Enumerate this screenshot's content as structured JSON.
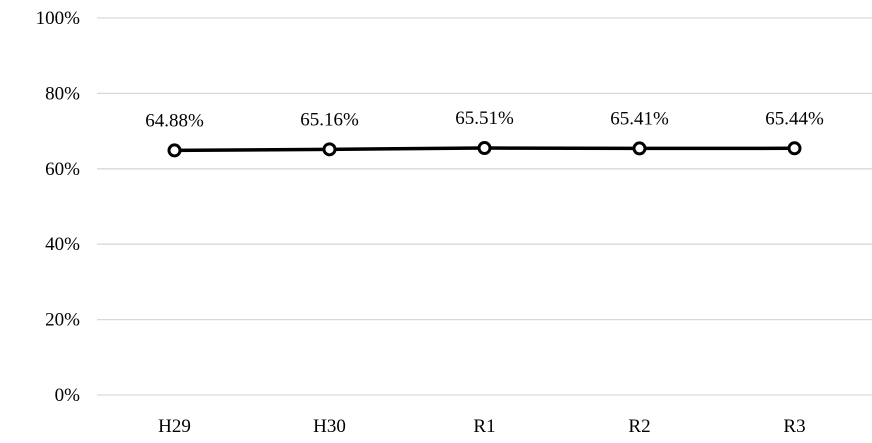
{
  "chart_data": {
    "type": "line",
    "title": "",
    "xlabel": "",
    "ylabel": "",
    "categories": [
      "H29",
      "H30",
      "R1",
      "R2",
      "R3"
    ],
    "series": [
      {
        "values": [
          64.88,
          65.16,
          65.51,
          65.41,
          65.44
        ],
        "data_labels": [
          "64.88%",
          "65.16%",
          "65.51%",
          "65.41%",
          "65.44%"
        ],
        "color": "#000000",
        "marker": "hollow-circle"
      }
    ],
    "ylim": [
      0,
      100
    ],
    "yticks": [
      0,
      20,
      40,
      60,
      80,
      100
    ],
    "ytick_labels": [
      "0%",
      "20%",
      "40%",
      "60%",
      "80%",
      "100%"
    ],
    "grid": true,
    "legend": "none",
    "colors": {
      "gridline": "#d9d9d9",
      "line": "#000000",
      "marker_fill": "#ffffff"
    }
  }
}
